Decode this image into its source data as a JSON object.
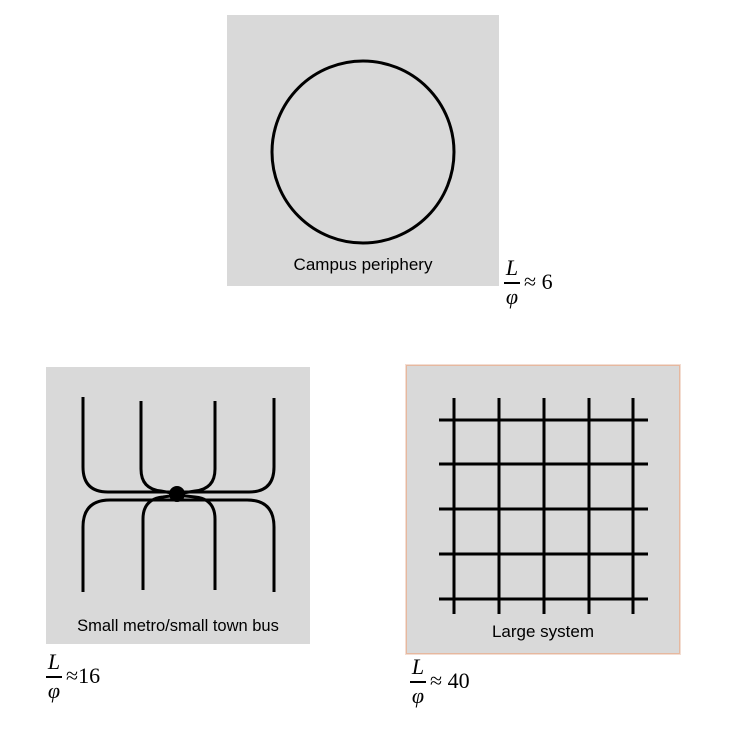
{
  "panels": {
    "campus": {
      "caption": "Campus periphery",
      "shape": "circle-loop-route"
    },
    "metro": {
      "caption": "Small metro/small town bus",
      "shape": "radial-pulse-routes"
    },
    "large": {
      "caption": "Large system",
      "shape": "grid-routes"
    }
  },
  "formulas": {
    "campus": {
      "numerator": "L",
      "denominator": "φ",
      "relation": "≈",
      "value": "6"
    },
    "metro": {
      "numerator": "L",
      "denominator": "φ",
      "relation": "≈",
      "value": "16"
    },
    "large": {
      "numerator": "L",
      "denominator": "φ",
      "relation": "≈",
      "value": "40"
    }
  },
  "colors": {
    "panel_background": "#d9d9d9",
    "route_line": "#000000",
    "highlight_border": "#e6b89f"
  }
}
